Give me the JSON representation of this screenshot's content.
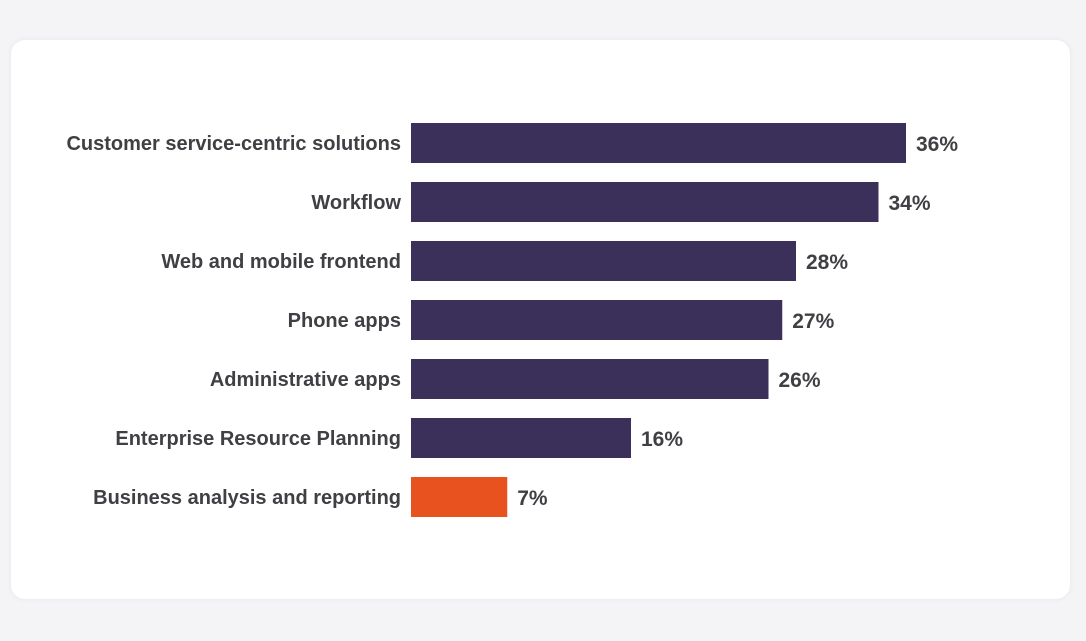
{
  "chart_data": {
    "type": "bar",
    "orientation": "horizontal",
    "categories": [
      "Customer service-centric solutions",
      "Workflow",
      "Web and mobile frontend",
      "Phone apps",
      "Administrative apps",
      "Enterprise Resource Planning",
      "Business analysis and reporting"
    ],
    "values": [
      36,
      34,
      28,
      27,
      26,
      16,
      7
    ],
    "value_labels": [
      "36%",
      "34%",
      "28%",
      "27%",
      "26%",
      "16%",
      "7%"
    ],
    "unit": "%",
    "colors": {
      "default": "#3a3059",
      "highlight": "#e8521f"
    },
    "highlight_index": 6,
    "grid": false,
    "legend": "none"
  }
}
